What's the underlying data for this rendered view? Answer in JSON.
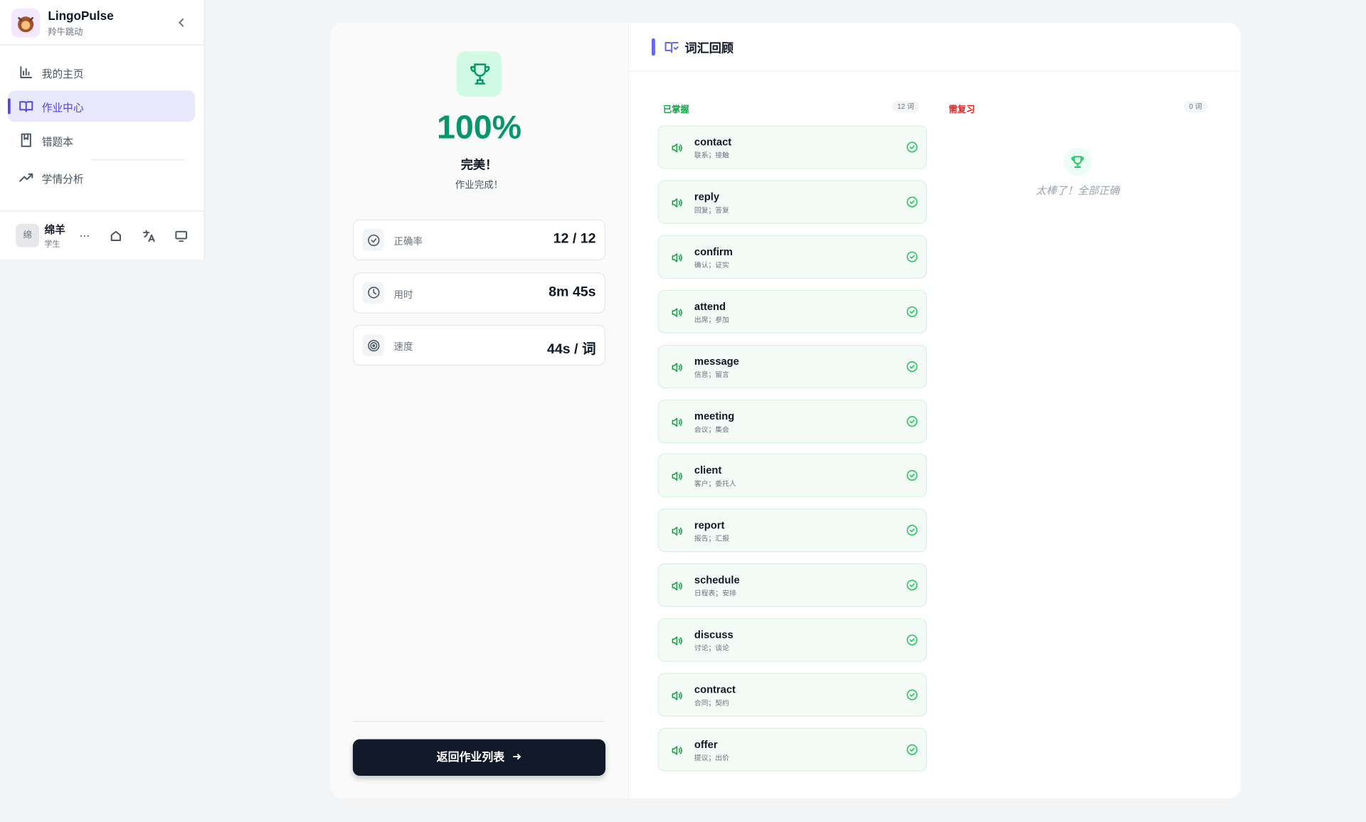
{
  "sidebar": {
    "brand": "LingoPulse",
    "subtitle": "羚牛跳动",
    "nav": [
      "我的主页",
      "作业中心",
      "错题本",
      "学情分析"
    ],
    "user": {
      "avatar": "绵",
      "name": "绵羊",
      "role": "学生"
    }
  },
  "result": {
    "percent": "100%",
    "title": "完美！",
    "subtitle": "作业完成！",
    "stats": [
      {
        "label": "正确率",
        "value": "12 / 12"
      },
      {
        "label": "用时",
        "value": "8m 45s"
      },
      {
        "label": "速度",
        "value": "44s / 词"
      }
    ],
    "button": "返回作业列表"
  },
  "review": {
    "title": "词汇回顾",
    "mastered": {
      "label": "已掌握",
      "count": "12 词",
      "words": [
        {
          "word": "contact",
          "meaning": "联系；接触"
        },
        {
          "word": "reply",
          "meaning": "回复；答复"
        },
        {
          "word": "confirm",
          "meaning": "确认；证实"
        },
        {
          "word": "attend",
          "meaning": "出席；参加"
        },
        {
          "word": "message",
          "meaning": "信息；留言"
        },
        {
          "word": "meeting",
          "meaning": "会议；集会"
        },
        {
          "word": "client",
          "meaning": "客户；委托人"
        },
        {
          "word": "report",
          "meaning": "报告；汇报"
        },
        {
          "word": "schedule",
          "meaning": "日程表；安排"
        },
        {
          "word": "discuss",
          "meaning": "讨论；谈论"
        },
        {
          "word": "contract",
          "meaning": "合同；契约"
        },
        {
          "word": "offer",
          "meaning": "提议；出价"
        }
      ]
    },
    "needs_review": {
      "label": "需复习",
      "count": "0 词",
      "empty": "太棒了！全部正确"
    }
  }
}
